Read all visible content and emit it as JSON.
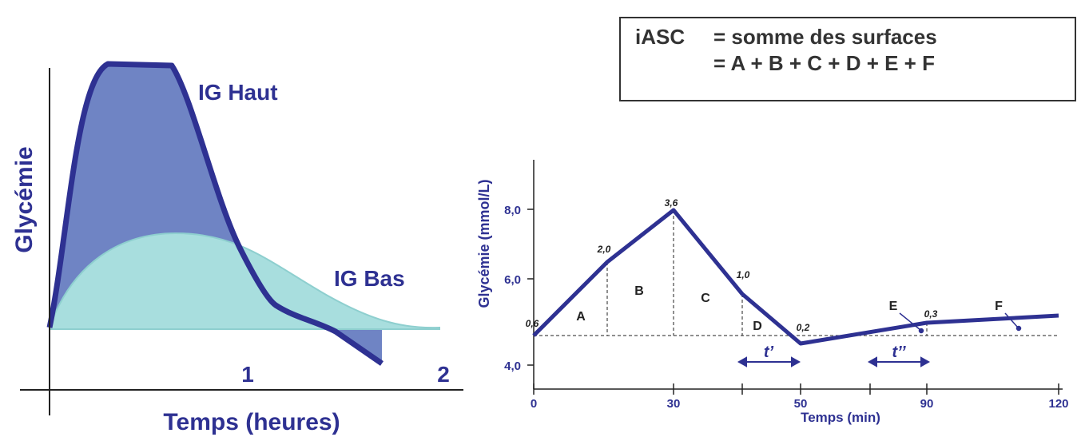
{
  "box": {
    "term": "iASC",
    "line1": "= somme des surfaces",
    "line2": "= A + B + C + D + E + F"
  },
  "left": {
    "y_label": "Glycémie",
    "x_label": "Temps (heures)",
    "x_ticks": [
      "1",
      "2"
    ],
    "curves": [
      "IG Haut",
      "IG Bas"
    ]
  },
  "right": {
    "y_label": "Glycémie (mmol/L)",
    "x_label": "Temps (min)",
    "y_ticks": [
      "4,0",
      "6,0",
      "8,0"
    ],
    "x_ticks": [
      "0",
      "30",
      "50",
      "90",
      "120"
    ],
    "point_labels": [
      "0,6",
      "2,0",
      "3,6",
      "1,0",
      "0,2",
      "0,3"
    ],
    "areas": [
      "A",
      "B",
      "C",
      "D",
      "E",
      "F"
    ],
    "intervals": [
      "t’",
      "t’’"
    ]
  }
}
